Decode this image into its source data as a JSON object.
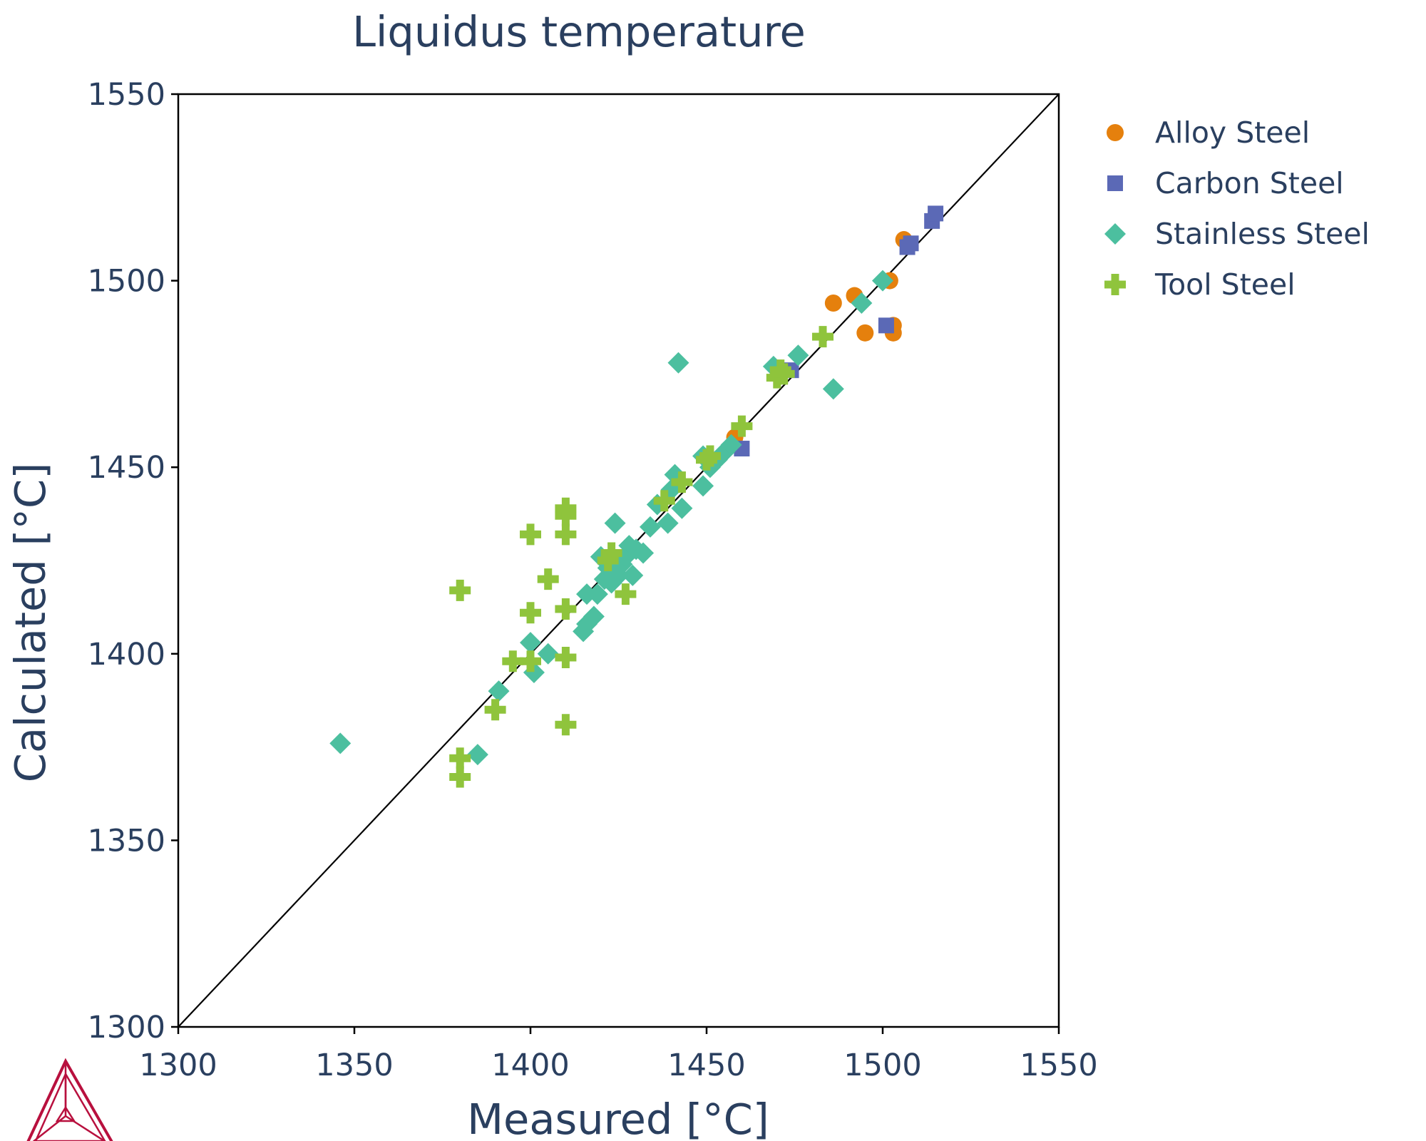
{
  "chart_data": {
    "type": "scatter",
    "title": "Liquidus temperature",
    "xlabel": "Measured [°C]",
    "ylabel": "Calculated [°C]",
    "xlim": [
      1300,
      1550
    ],
    "ylim": [
      1300,
      1550
    ],
    "x_ticks": [
      "1300",
      "1350",
      "1400",
      "1450",
      "1500",
      "1550"
    ],
    "y_ticks": [
      "1300",
      "1350",
      "1400",
      "1450",
      "1500",
      "1550"
    ],
    "reference_line": "y = x",
    "grid": false,
    "legend_position": "top-right outside",
    "series": [
      {
        "name": "Alloy Steel",
        "marker": "circle",
        "color": "#e5800d",
        "points": [
          [
            1458,
            1458
          ],
          [
            1486,
            1494
          ],
          [
            1492,
            1496
          ],
          [
            1495,
            1486
          ],
          [
            1502,
            1500
          ],
          [
            1503,
            1488
          ],
          [
            1503,
            1486
          ],
          [
            1506,
            1511
          ]
        ]
      },
      {
        "name": "Carbon Steel",
        "marker": "square",
        "color": "#5b69b6",
        "points": [
          [
            1460,
            1455
          ],
          [
            1474,
            1476
          ],
          [
            1501,
            1488
          ],
          [
            1507,
            1509
          ],
          [
            1508,
            1510
          ],
          [
            1514,
            1516
          ],
          [
            1515,
            1518
          ]
        ]
      },
      {
        "name": "Stainless Steel",
        "marker": "diamond",
        "color": "#4cbf9f",
        "points": [
          [
            1346,
            1376
          ],
          [
            1385,
            1373
          ],
          [
            1391,
            1390
          ],
          [
            1400,
            1403
          ],
          [
            1401,
            1395
          ],
          [
            1405,
            1400
          ],
          [
            1415,
            1406
          ],
          [
            1416,
            1408
          ],
          [
            1416,
            1416
          ],
          [
            1418,
            1410
          ],
          [
            1419,
            1416
          ],
          [
            1420,
            1426
          ],
          [
            1421,
            1420
          ],
          [
            1422,
            1423
          ],
          [
            1423,
            1419
          ],
          [
            1424,
            1435
          ],
          [
            1425,
            1421
          ],
          [
            1426,
            1424
          ],
          [
            1427,
            1426
          ],
          [
            1428,
            1429
          ],
          [
            1429,
            1421
          ],
          [
            1430,
            1428
          ],
          [
            1432,
            1427
          ],
          [
            1434,
            1434
          ],
          [
            1436,
            1440
          ],
          [
            1439,
            1435
          ],
          [
            1440,
            1444
          ],
          [
            1441,
            1448
          ],
          [
            1443,
            1439
          ],
          [
            1449,
            1445
          ],
          [
            1449,
            1453
          ],
          [
            1442,
            1478
          ],
          [
            1451,
            1450
          ],
          [
            1453,
            1452
          ],
          [
            1455,
            1454
          ],
          [
            1457,
            1456
          ],
          [
            1469,
            1477
          ],
          [
            1476,
            1480
          ],
          [
            1486,
            1471
          ],
          [
            1494,
            1494
          ],
          [
            1500,
            1500
          ]
        ]
      },
      {
        "name": "Tool Steel",
        "marker": "cross",
        "color": "#8fc43c",
        "points": [
          [
            1380,
            1367
          ],
          [
            1380,
            1372
          ],
          [
            1380,
            1417
          ],
          [
            1390,
            1385
          ],
          [
            1395,
            1398
          ],
          [
            1400,
            1398
          ],
          [
            1400,
            1411
          ],
          [
            1400,
            1432
          ],
          [
            1405,
            1420
          ],
          [
            1410,
            1381
          ],
          [
            1410,
            1399
          ],
          [
            1410,
            1412
          ],
          [
            1410,
            1432
          ],
          [
            1410,
            1437
          ],
          [
            1410,
            1439
          ],
          [
            1422,
            1425
          ],
          [
            1423,
            1427
          ],
          [
            1427,
            1416
          ],
          [
            1438,
            1441
          ],
          [
            1443,
            1446
          ],
          [
            1450,
            1452
          ],
          [
            1451,
            1453
          ],
          [
            1460,
            1461
          ],
          [
            1470,
            1474
          ],
          [
            1471,
            1476
          ],
          [
            1472,
            1475
          ],
          [
            1483,
            1485
          ]
        ]
      }
    ]
  },
  "logo": {
    "name": "thermo-calc-triangle-logo",
    "color": "#b8103e"
  }
}
